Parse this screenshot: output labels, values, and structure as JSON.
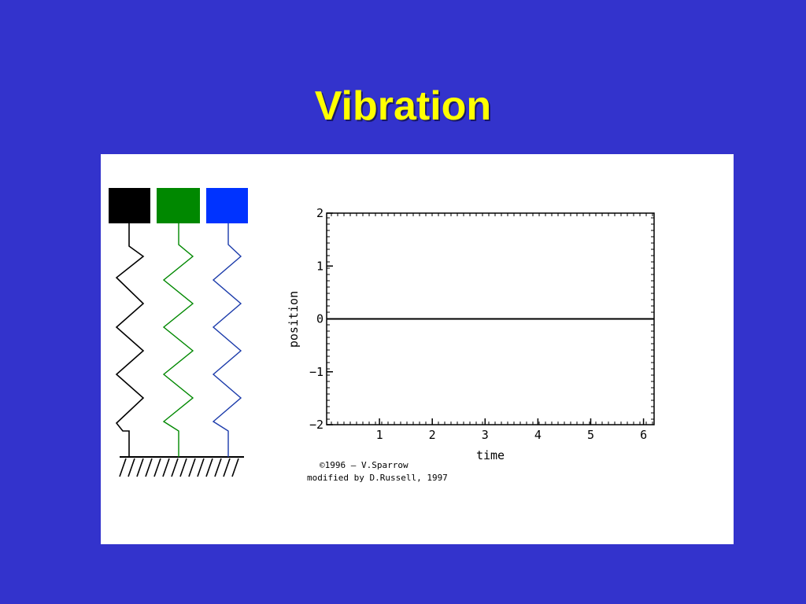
{
  "slide": {
    "title": "Vibration"
  },
  "springs": [
    {
      "name": "black",
      "color": "#000000",
      "amplitude": 0
    },
    {
      "name": "green",
      "color": "#008800",
      "amplitude": 0
    },
    {
      "name": "blue",
      "color": "#0033ff",
      "amplitude": 0
    }
  ],
  "chart_data": {
    "type": "line",
    "xlabel": "time",
    "ylabel": "position",
    "xlim": [
      0,
      6.2
    ],
    "ylim": [
      -2,
      2
    ],
    "x_ticks": [
      "1",
      "2",
      "3",
      "4",
      "5",
      "6"
    ],
    "y_ticks": [
      "2",
      "1",
      "0",
      "−1",
      "−2"
    ],
    "series": [
      {
        "x": [
          0,
          6.2
        ],
        "y": [
          0,
          0
        ],
        "color": "#000000"
      }
    ]
  },
  "credits": {
    "line1": "©1996 – V.Sparrow",
    "line2": "modified by D.Russell, 1997"
  }
}
